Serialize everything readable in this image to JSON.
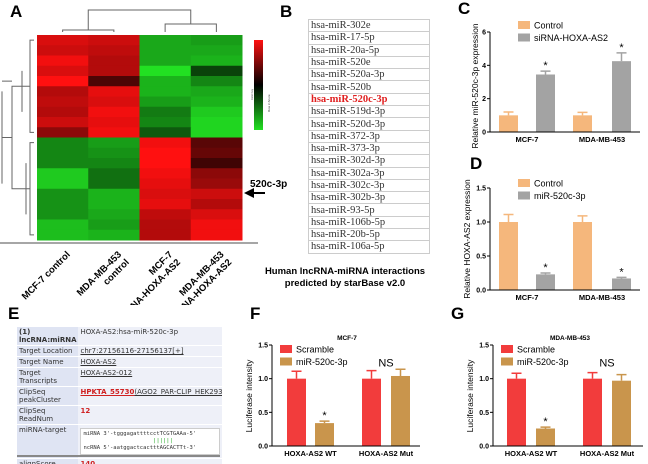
{
  "panels": {
    "a": "A",
    "b": "B",
    "c": "C",
    "d": "D",
    "e": "E",
    "f": "F",
    "g": "G"
  },
  "heatmap": {
    "columns": [
      "MCF-7 control",
      "MDA-MB-453 control",
      "MCF-7 siRNA-HOXA-AS2",
      "MDA-MB-453 siRNA-HOXA-AS2"
    ],
    "color_low": "#22e022",
    "color_mid": "#000000",
    "color_high": "#ff1010",
    "key_title": "Color Key",
    "key_label": "Row Z-Score",
    "arrow_label": "520c-3p",
    "values": [
      [
        0.85,
        0.8,
        -0.75,
        -0.7
      ],
      [
        0.8,
        0.75,
        -0.75,
        -0.75
      ],
      [
        0.95,
        0.7,
        -0.75,
        -0.8
      ],
      [
        0.85,
        0.7,
        -1.0,
        -0.3
      ],
      [
        1.0,
        0.3,
        -0.8,
        -0.6
      ],
      [
        0.7,
        0.9,
        -0.8,
        -0.75
      ],
      [
        0.75,
        0.85,
        -0.7,
        -0.8
      ],
      [
        0.7,
        0.95,
        -0.55,
        -0.9
      ],
      [
        0.8,
        0.9,
        -0.6,
        -0.95
      ],
      [
        0.55,
        0.95,
        -0.4,
        -0.95
      ],
      [
        -0.6,
        -0.7,
        0.95,
        0.35
      ],
      [
        -0.6,
        -0.65,
        1.0,
        0.4
      ],
      [
        -0.6,
        -0.6,
        1.0,
        0.25
      ],
      [
        -0.9,
        -0.5,
        0.95,
        0.55
      ],
      [
        -0.9,
        -0.5,
        0.9,
        0.6
      ],
      [
        -0.65,
        -0.8,
        0.85,
        0.8
      ],
      [
        -0.65,
        -0.8,
        0.9,
        0.7
      ],
      [
        -0.65,
        -0.75,
        0.75,
        0.85
      ],
      [
        -0.85,
        -0.7,
        0.7,
        0.95
      ],
      [
        -0.85,
        -0.8,
        0.7,
        0.95
      ]
    ]
  },
  "mirna_list": {
    "items": [
      "hsa-miR-302e",
      "hsa-miR-17-5p",
      "hsa-miR-20a-5p",
      "hsa-miR-520e",
      "hsa-miR-520a-3p",
      "hsa-miR-520b",
      "hsa-miR-520c-3p",
      "hsa-miR-519d-3p",
      "hsa-miR-520d-3p",
      "hsa-miR-372-3p",
      "hsa-miR-373-3p",
      "hsa-miR-302d-3p",
      "hsa-miR-302a-3p",
      "hsa-miR-302c-3p",
      "hsa-miR-302b-3p",
      "hsa-miR-93-5p",
      "hsa-miR-106b-5p",
      "hsa-miR-20b-5p",
      "hsa-miR-106a-5p"
    ],
    "highlight": "hsa-miR-520c-3p",
    "highlight_color": "#e02020",
    "caption_line1": "Human lncRNA-miRNA interactions",
    "caption_line2": "predicted by starBase v2.0"
  },
  "starbase": {
    "header_key": "(1) lncRNA:miRNA",
    "header_val": "HOXA-AS2:hsa-miR-520c-3p",
    "rows": [
      {
        "k": "Target Location",
        "v": "chr7:27156116-27156137[+]"
      },
      {
        "k": "Target Name",
        "v": "HOXA-AS2"
      },
      {
        "k": "Target Transcripts",
        "v": "HOXA-AS2-012"
      },
      {
        "k": "ClipSeq peakCluster",
        "v1": "HPKTA_55730",
        "v2": "(AGO2_PAR-CLIP_HEK293)"
      },
      {
        "k": "ClipSeq ReadNum",
        "v": "12"
      }
    ],
    "target_key": "miRNA-target",
    "align_mirna": "miRNA 3'-tgggagattttcctTCGTGAAa-5'",
    "align_bars": "                     ||||||",
    "align_ncrna": "ncRNA 5'-aatggactcactttAGCACTTt-3'",
    "score_key": "alignScore",
    "score_val": "140"
  },
  "chart_data": [
    {
      "id": "C",
      "type": "bar",
      "categories": [
        "MCF-7",
        "MDA-MB-453"
      ],
      "ylabel": "Relative miR-520c-3p expression",
      "ylim": [
        0,
        6
      ],
      "yticks": [
        "0",
        "2",
        "4",
        "6"
      ],
      "series": [
        {
          "name": "Control",
          "color": "#f5b77c",
          "values": [
            1.0,
            1.0
          ],
          "errors": [
            0.2,
            0.18
          ]
        },
        {
          "name": "siRNA-HOXA-AS2",
          "color": "#a3a3a3",
          "values": [
            3.45,
            4.25
          ],
          "errors": [
            0.2,
            0.5
          ]
        }
      ],
      "annotations": [
        {
          "category": "MCF-7",
          "series": 1,
          "text": "*"
        },
        {
          "category": "MDA-MB-453",
          "series": 1,
          "text": "*"
        }
      ],
      "legend": "top-left"
    },
    {
      "id": "D",
      "type": "bar",
      "categories": [
        "MCF-7",
        "MDA-MB-453"
      ],
      "ylabel": "Relative HOXA-AS2 expression",
      "ylim": [
        0,
        1.5
      ],
      "yticks": [
        "0.0",
        "0.5",
        "1.0",
        "1.5"
      ],
      "series": [
        {
          "name": "Control",
          "color": "#f5b77c",
          "values": [
            1.0,
            1.0
          ],
          "errors": [
            0.11,
            0.09
          ]
        },
        {
          "name": "miR-520c-3p",
          "color": "#a3a3a3",
          "values": [
            0.23,
            0.17
          ],
          "errors": [
            0.02,
            0.015
          ]
        }
      ],
      "annotations": [
        {
          "category": "MCF-7",
          "series": 1,
          "text": "*"
        },
        {
          "category": "MDA-MB-453",
          "series": 1,
          "text": "*"
        }
      ],
      "legend": "top-left"
    },
    {
      "id": "F",
      "type": "bar",
      "title": "MCF-7",
      "categories": [
        "HOXA-AS2 WT",
        "HOXA-AS2 Mut"
      ],
      "ylabel": "Luciferase intensity",
      "ylim": [
        0,
        1.5
      ],
      "yticks": [
        "0.0",
        "0.5",
        "1.0",
        "1.5"
      ],
      "series": [
        {
          "name": "Scramble",
          "color": "#f23c3c",
          "values": [
            1.0,
            1.0
          ],
          "errors": [
            0.11,
            0.12
          ]
        },
        {
          "name": "miR-520c-3p",
          "color": "#c9954c",
          "values": [
            0.34,
            1.04
          ],
          "errors": [
            0.03,
            0.1
          ]
        }
      ],
      "annotations": [
        {
          "category": "HOXA-AS2 WT",
          "series": 1,
          "text": "*"
        },
        {
          "category": "HOXA-AS2 Mut",
          "series": -1,
          "text": "NS"
        }
      ],
      "legend": "top-left"
    },
    {
      "id": "G",
      "type": "bar",
      "title": "MDA-MB-453",
      "categories": [
        "HOXA-AS2 WT",
        "HOXA-AS2 Mut"
      ],
      "ylabel": "Luciferase intensity",
      "ylim": [
        0,
        1.5
      ],
      "yticks": [
        "0.0",
        "0.5",
        "1.0",
        "1.5"
      ],
      "series": [
        {
          "name": "Scramble",
          "color": "#f23c3c",
          "values": [
            1.0,
            1.0
          ],
          "errors": [
            0.08,
            0.09
          ]
        },
        {
          "name": "miR-520c-3p",
          "color": "#c9954c",
          "values": [
            0.26,
            0.97
          ],
          "errors": [
            0.02,
            0.09
          ]
        }
      ],
      "annotations": [
        {
          "category": "HOXA-AS2 WT",
          "series": 1,
          "text": "*"
        },
        {
          "category": "HOXA-AS2 Mut",
          "series": -1,
          "text": "NS"
        }
      ],
      "legend": "top-left"
    }
  ]
}
